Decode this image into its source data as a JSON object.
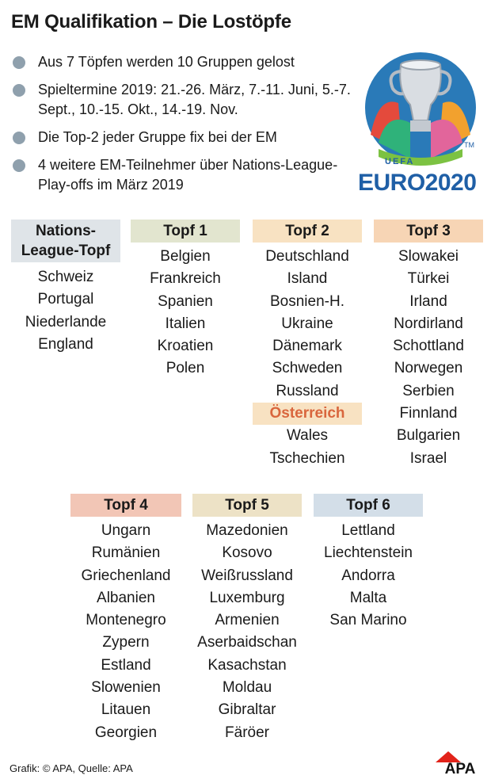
{
  "title": "EM Qualifikation – Die Lostöpfe",
  "bullets": [
    "Aus 7 Töpfen werden 10 Gruppen gelost",
    "Spieltermine 2019: 21.-26. März, 7.-11. Juni, 5.-7. Sept., 10.-15. Okt., 14.-19. Nov.",
    "Die Top-2 jeder Gruppe fix bei der EM",
    "4 weitere EM-Teilnehmer über Nations-League-Play-offs im März 2019"
  ],
  "logo": {
    "uefa": "UEFA",
    "word": "EURO2020",
    "tm": "TM",
    "icon": "euro2020-trophy-logo"
  },
  "colors": {
    "nations": "#dfe4e8",
    "pot1": "#e2e5cf",
    "pot2": "#f8e2c2",
    "pot3": "#f7d5b5",
    "pot4": "#f2c6b6",
    "pot5": "#ede2c6",
    "pot6": "#d3dee8",
    "highlight_text": "#d9663d"
  },
  "pots": {
    "nations": {
      "header_line1": "Nations-",
      "header_line2": "League-Topf",
      "countries": [
        "Schweiz",
        "Portugal",
        "Niederlande",
        "England"
      ]
    },
    "pot1": {
      "header": "Topf 1",
      "countries": [
        "Belgien",
        "Frankreich",
        "Spanien",
        "Italien",
        "Kroatien",
        "Polen"
      ]
    },
    "pot2": {
      "header": "Topf 2",
      "countries": [
        "Deutschland",
        "Island",
        "Bosnien-H.",
        "Ukraine",
        "Dänemark",
        "Schweden",
        "Russland",
        "Österreich",
        "Wales",
        "Tschechien"
      ],
      "highlight": "Österreich"
    },
    "pot3": {
      "header": "Topf 3",
      "countries": [
        "Slowakei",
        "Türkei",
        "Irland",
        "Nordirland",
        "Schottland",
        "Norwegen",
        "Serbien",
        "Finnland",
        "Bulgarien",
        "Israel"
      ]
    },
    "pot4": {
      "header": "Topf 4",
      "countries": [
        "Ungarn",
        "Rumänien",
        "Griechenland",
        "Albanien",
        "Montenegro",
        "Zypern",
        "Estland",
        "Slowenien",
        "Litauen",
        "Georgien"
      ]
    },
    "pot5": {
      "header": "Topf 5",
      "countries": [
        "Mazedonien",
        "Kosovo",
        "Weißrussland",
        "Luxemburg",
        "Armenien",
        "Aserbaidschan",
        "Kasachstan",
        "Moldau",
        "Gibraltar",
        "Färöer"
      ]
    },
    "pot6": {
      "header": "Topf 6",
      "countries": [
        "Lettland",
        "Liechtenstein",
        "Andorra",
        "Malta",
        "San Marino"
      ]
    }
  },
  "footer": "Grafik: © APA, Quelle: APA",
  "apa_logo": {
    "text": "APA",
    "icon": "apa-logo"
  }
}
